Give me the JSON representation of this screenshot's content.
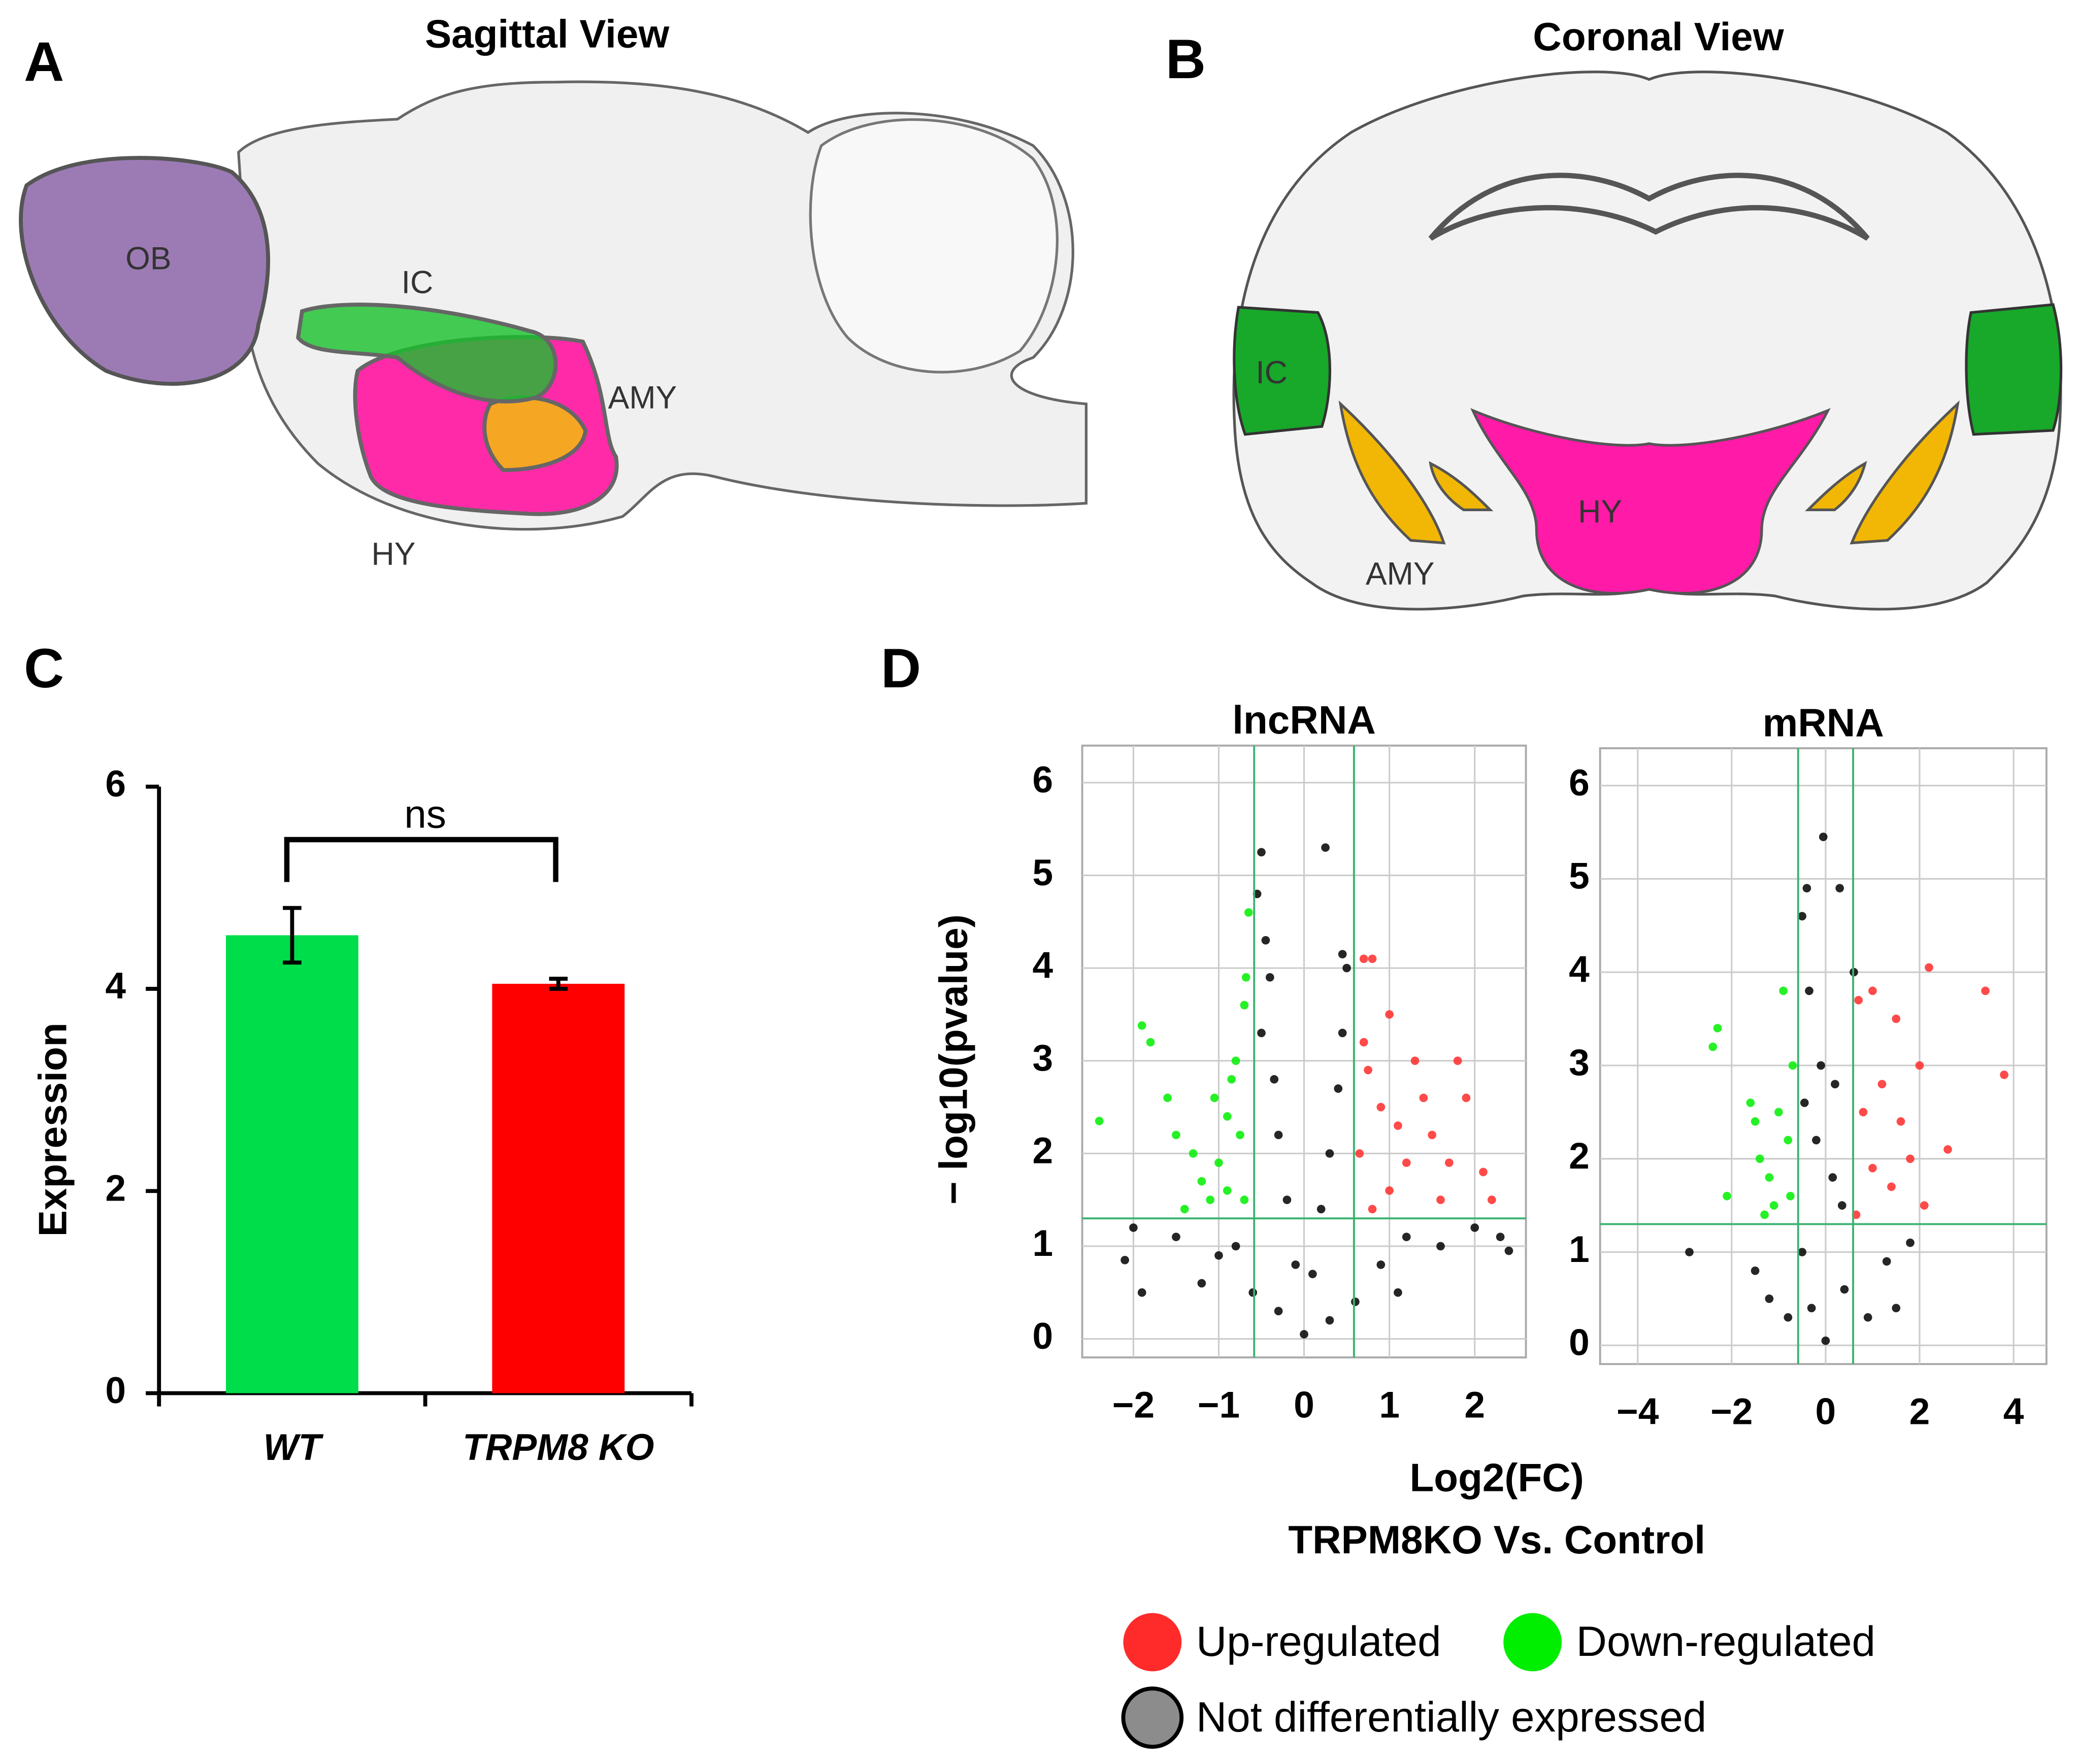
{
  "panel_a": {
    "letter": "A",
    "title": "Sagittal View",
    "labels": [
      "OB",
      "IC",
      "AMY",
      "HY"
    ]
  },
  "panel_b": {
    "letter": "B",
    "title": "Coronal View",
    "labels": [
      "IC",
      "AMY",
      "HY"
    ]
  },
  "panel_c": {
    "letter": "C"
  },
  "panel_d": {
    "letter": "D",
    "xlabel": "Log2(FC)",
    "xlabel_sub": "TRPM8KO Vs. Control",
    "ylabel": "− log10(pvalue)"
  },
  "chart_data": [
    {
      "type": "bar",
      "ylabel": "Expression",
      "categories": [
        "WT",
        "TRPM8 KO"
      ],
      "values": [
        4.53,
        4.05
      ],
      "errors": [
        0.27,
        0.05
      ],
      "colors": [
        "#00dd4a",
        "#ff0000"
      ],
      "ylim": [
        0,
        6
      ],
      "yticks": [
        0,
        2,
        4,
        6
      ],
      "annotation": "ns"
    },
    {
      "type": "scatter",
      "title": "lncRNA",
      "xlim": [
        -2.6,
        2.6
      ],
      "ylim": [
        -0.2,
        6.4
      ],
      "xticks": [
        {
          "value": -2,
          "label": "−2"
        },
        {
          "value": -1,
          "label": "−1"
        },
        0,
        1,
        2
      ],
      "yticks": [
        0,
        1,
        2,
        3,
        4,
        5,
        6
      ],
      "grid": true,
      "thresholds_x": [
        -0.585,
        0.585
      ],
      "threshold_y": 1.3,
      "threshold_color": "#3cb371",
      "series": [
        {
          "name": "Up-regulated",
          "color": "#ff2a2a",
          "x": [
            0.7,
            0.8,
            1.0,
            1.3,
            1.8,
            1.9,
            2.1,
            2.2,
            1.5,
            1.2,
            0.9,
            0.7,
            0.65,
            1.0,
            1.6,
            0.8,
            1.4,
            1.7,
            0.75,
            1.1
          ],
          "y": [
            4.1,
            4.1,
            3.5,
            3.0,
            3.0,
            2.6,
            1.8,
            1.5,
            2.2,
            1.9,
            2.5,
            3.2,
            2.0,
            1.6,
            1.5,
            1.4,
            2.6,
            1.9,
            2.9,
            2.3
          ]
        },
        {
          "name": "Down-regulated",
          "color": "#00ee00",
          "x": [
            -2.4,
            -1.9,
            -1.8,
            -1.6,
            -1.5,
            -1.3,
            -1.2,
            -1.1,
            -1.0,
            -0.9,
            -0.8,
            -0.7,
            -0.65,
            -0.7,
            -0.9,
            -1.4,
            -0.75,
            -0.85,
            -1.05,
            -0.68
          ],
          "y": [
            2.35,
            3.38,
            3.2,
            2.6,
            2.2,
            2.0,
            1.7,
            1.5,
            1.9,
            2.4,
            3.0,
            3.6,
            4.6,
            1.5,
            1.6,
            1.4,
            2.2,
            2.8,
            2.6,
            3.9
          ]
        },
        {
          "name": "Not differentially expressed",
          "color": "#000000",
          "x": [
            -0.5,
            0.25,
            -0.55,
            -0.45,
            -0.4,
            -0.5,
            -0.35,
            -0.3,
            -0.2,
            -0.1,
            0,
            0.1,
            0.2,
            0.3,
            0.4,
            0.45,
            0.5,
            0.45,
            -0.8,
            -1.0,
            -1.5,
            -2.0,
            -2.1,
            -1.9,
            1.2,
            1.6,
            2.0,
            2.3,
            2.4,
            -0.6,
            0.6,
            -0.3,
            0.3,
            0.9,
            -1.2,
            1.1
          ],
          "y": [
            5.25,
            5.3,
            4.8,
            4.3,
            3.9,
            3.3,
            2.8,
            2.2,
            1.5,
            0.8,
            0.05,
            0.7,
            1.4,
            2.0,
            2.7,
            3.3,
            4.0,
            4.15,
            1.0,
            0.9,
            1.1,
            1.2,
            0.85,
            0.5,
            1.1,
            1.0,
            1.2,
            1.1,
            0.95,
            0.5,
            0.4,
            0.3,
            0.2,
            0.8,
            0.6,
            0.5
          ]
        }
      ]
    },
    {
      "type": "scatter",
      "title": "mRNA",
      "xlim": [
        -4.8,
        4.7
      ],
      "ylim": [
        -0.2,
        6.4
      ],
      "xticks": [
        {
          "value": -4,
          "label": "−4"
        },
        {
          "value": -2,
          "label": "−2"
        },
        0,
        2,
        4
      ],
      "yticks": [
        0,
        1,
        2,
        3,
        4,
        5,
        6
      ],
      "grid": true,
      "thresholds_x": [
        -0.585,
        0.585
      ],
      "threshold_y": 1.3,
      "threshold_color": "#3cb371",
      "series": [
        {
          "color": "#ff2a2a",
          "x": [
            2.2,
            3.4,
            3.8,
            2.6,
            2.0,
            1.5,
            1.0,
            0.7,
            1.2,
            1.8,
            0.8,
            1.4,
            2.1,
            0.65,
            1.0,
            1.6
          ],
          "y": [
            4.05,
            3.8,
            2.9,
            2.1,
            3.0,
            3.5,
            3.8,
            3.7,
            2.8,
            2.0,
            2.5,
            1.7,
            1.5,
            1.4,
            1.9,
            2.4
          ]
        },
        {
          "color": "#00ee00",
          "x": [
            -2.3,
            -2.4,
            -2.1,
            -1.6,
            -1.5,
            -1.4,
            -1.2,
            -1.0,
            -0.9,
            -0.8,
            -0.7,
            -1.1,
            -0.75,
            -1.3
          ],
          "y": [
            3.4,
            3.2,
            1.6,
            2.6,
            2.4,
            2.0,
            1.8,
            2.5,
            3.8,
            2.2,
            3.0,
            1.5,
            1.6,
            1.4
          ]
        },
        {
          "color": "#000000",
          "x": [
            -0.05,
            -0.4,
            0.3,
            -0.5,
            0.6,
            -0.35,
            -0.1,
            0.2,
            -0.2,
            0.15,
            -0.5,
            0,
            0.4,
            -0.3,
            -2.9,
            -1.5,
            -1.2,
            1.3,
            1.8,
            1.5,
            -0.8,
            0.9,
            0.35,
            -0.45
          ],
          "y": [
            5.45,
            4.9,
            4.9,
            4.6,
            4.0,
            3.8,
            3.0,
            2.8,
            2.2,
            1.8,
            1.0,
            0.05,
            0.6,
            0.4,
            1.0,
            0.8,
            0.5,
            0.9,
            1.1,
            0.4,
            0.3,
            0.3,
            1.5,
            2.6
          ]
        }
      ]
    }
  ]
}
